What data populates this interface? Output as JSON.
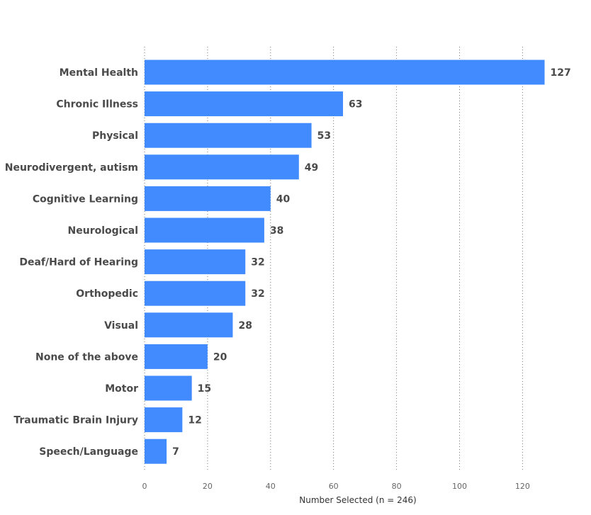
{
  "chart_data": {
    "type": "bar",
    "orientation": "horizontal",
    "categories": [
      "Mental Health",
      "Chronic Illness",
      "Physical",
      "Neurodivergent, autism",
      "Cognitive Learning",
      "Neurological",
      "Deaf/Hard of Hearing",
      "Orthopedic",
      "Visual",
      "None of the above",
      "Motor",
      "Traumatic Brain Injury",
      "Speech/Language"
    ],
    "values": [
      127,
      63,
      53,
      49,
      40,
      38,
      32,
      32,
      28,
      20,
      15,
      12,
      7
    ],
    "xlabel": "Number Selected (n = 246)",
    "ylabel": "",
    "xlim": [
      0,
      130
    ],
    "xticks": [
      0,
      20,
      40,
      60,
      80,
      100,
      120
    ],
    "grid": "vertical dotted",
    "bar_color": "#418BFF",
    "data_labels": true
  }
}
